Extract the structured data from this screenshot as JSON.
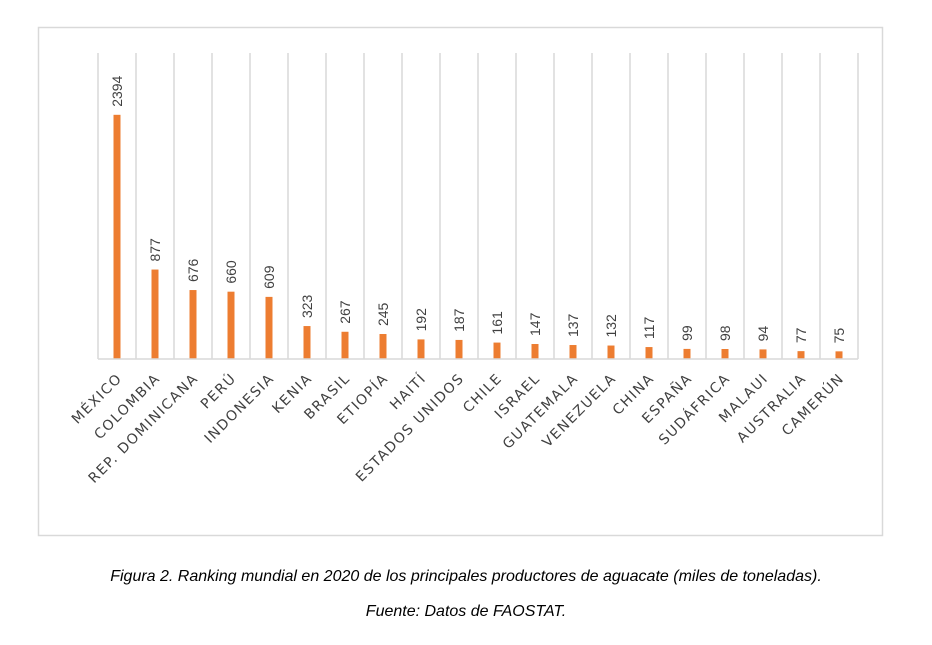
{
  "chart_data": {
    "type": "bar",
    "title": "",
    "xlabel": "",
    "ylabel": "",
    "ylim": [
      0,
      3000
    ],
    "grid": "vertical",
    "bar_color": "#ED7D31",
    "categories": [
      "MÉXICO",
      "COLOMBIA",
      "REP. DOMINICANA",
      "PERÚ",
      "INDONESIA",
      "KENIA",
      "BRASIL",
      "ETIOPÍA",
      "HAITÍ",
      "ESTADOS UNIDOS",
      "CHILE",
      "ISRAEL",
      "GUATEMALA",
      "VENEZUELA",
      "CHINA",
      "ESPAÑA",
      "SUDÁFRICA",
      "MALAUI",
      "AUSTRALIA",
      "CAMERÚN"
    ],
    "values": [
      2394,
      877,
      676,
      660,
      609,
      323,
      267,
      245,
      192,
      187,
      161,
      147,
      137,
      132,
      117,
      99,
      98,
      94,
      77,
      75
    ]
  },
  "caption": {
    "figure": "Figura 2. Ranking mundial en 2020 de los principales productores de aguacate (miles de toneladas).",
    "source": "Fuente: Datos de FAOSTAT."
  }
}
